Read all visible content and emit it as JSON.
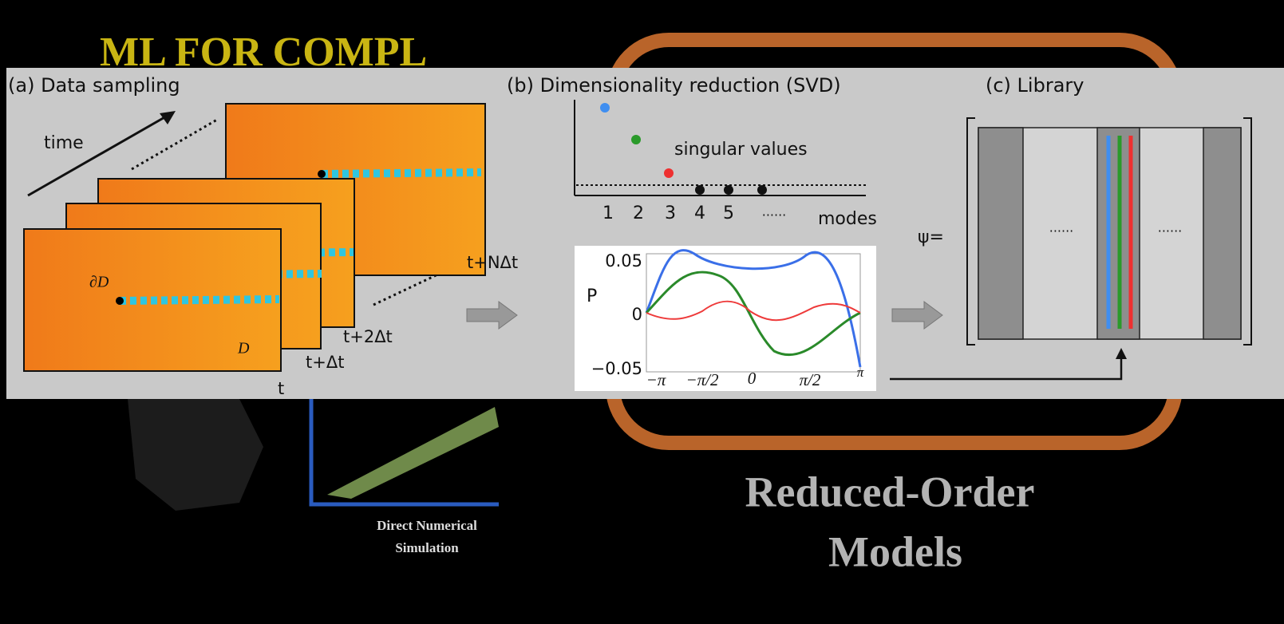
{
  "background": {
    "title": "ML FOR COMPL",
    "caption": [
      "Direct Numerical",
      "Simulation"
    ],
    "subtitle": [
      "Reduced-Order",
      "Models"
    ]
  },
  "panel_a": {
    "title": "(a) Data sampling",
    "time": "time",
    "boundary": "∂D",
    "domain": "D",
    "frames": [
      "t",
      "t+Δt",
      "t+2Δt",
      "t+NΔt"
    ]
  },
  "panel_b": {
    "title": "(b) Dimensionality reduction (SVD)",
    "sv_label": "singular values",
    "modes": [
      "1",
      "2",
      "3",
      "4",
      "5",
      "......"
    ],
    "modes_label": "modes",
    "mode_plot": {
      "y_label": "P",
      "yticks": [
        "0.05",
        "0",
        "−0.05"
      ],
      "xticks": [
        "−π",
        "−π/2",
        "0",
        "π/2",
        "π"
      ]
    }
  },
  "panel_c": {
    "title": "(c) Library",
    "psi": "ψ=",
    "ellipsis": [
      "......",
      "......"
    ]
  }
}
